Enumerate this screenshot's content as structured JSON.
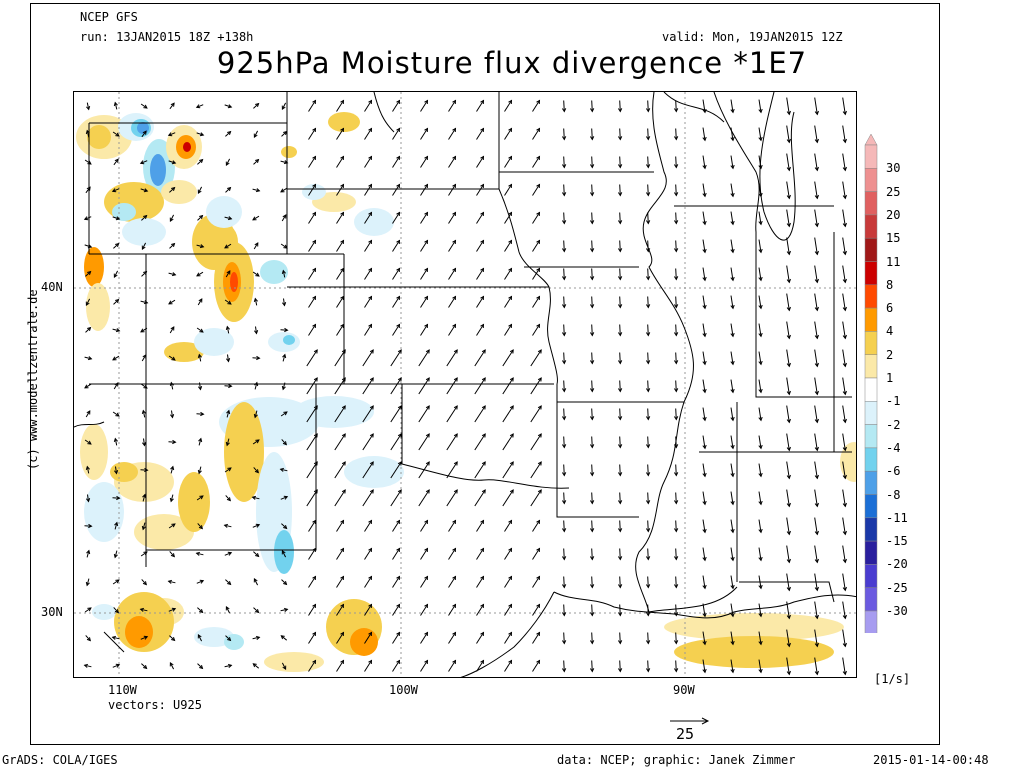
{
  "header": {
    "model": "NCEP GFS",
    "run": "run: 13JAN2015 18Z +138h",
    "valid": "valid: Mon, 19JAN2015 12Z",
    "title": "925hPa Moisture flux divergence *1E7"
  },
  "axes": {
    "lat_labels": [
      "40N",
      "30N"
    ],
    "lon_labels": [
      "110W",
      "100W",
      "90W"
    ],
    "vectors_label": "vectors: U925",
    "units": "[1/s]",
    "ref_vector_value": "25"
  },
  "colorbar": {
    "labels": [
      "30",
      "25",
      "20",
      "15",
      "11",
      "8",
      "6",
      "4",
      "2",
      "1",
      "-1",
      "-2",
      "-4",
      "-6",
      "-8",
      "-11",
      "-15",
      "-20",
      "-25",
      "-30"
    ],
    "colors": {
      "pos": [
        "#f5b8b8",
        "#ee9090",
        "#e06060",
        "#c83a3a",
        "#a01818",
        "#cc0000",
        "#ff4a00",
        "#ff9a00",
        "#f5d050",
        "#fbe9a8",
        "#ffffff"
      ],
      "neg": [
        "#ffffff",
        "#dcf2fb",
        "#b4e9f3",
        "#72d2ee",
        "#4ea0e8",
        "#1b6fd6",
        "#1a38a8",
        "#2a1f9e",
        "#4a3cd0",
        "#6b5ae0",
        "#a79cf0"
      ]
    }
  },
  "footer": {
    "left": "GrADS: COLA/IGES",
    "center": "data: NCEP; graphic: Janek Zimmer",
    "right": "2015-01-14-00:48"
  },
  "watermark": "(c) www.modellzentrale.de"
}
